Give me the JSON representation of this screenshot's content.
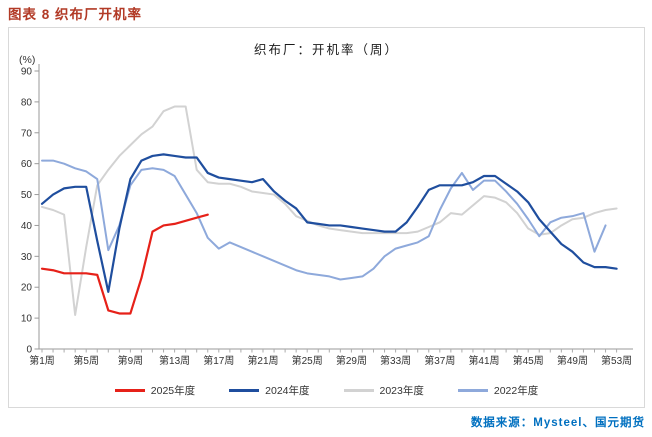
{
  "page": {
    "title": "图表 8 织布厂开机率",
    "source": "数据来源：Mysteel、国元期货"
  },
  "chart_data": {
    "type": "line",
    "title": "织布厂：开机率（周）",
    "y_unit_label": "(%)",
    "ylabel": "开机率(%)",
    "xlabel": "周",
    "ylim": [
      0,
      90
    ],
    "y_ticks": [
      0,
      10,
      20,
      30,
      40,
      50,
      60,
      70,
      80,
      90
    ],
    "x_range_weeks": [
      1,
      53
    ],
    "x_tick_weeks": [
      1,
      5,
      9,
      13,
      17,
      21,
      25,
      29,
      33,
      37,
      41,
      45,
      49,
      53
    ],
    "x_tick_labels": [
      "第1周",
      "第5周",
      "第9周",
      "第13周",
      "第17周",
      "第21周",
      "第25周",
      "第29周",
      "第33周",
      "第37周",
      "第41周",
      "第45周",
      "第49周",
      "第53周"
    ],
    "grid": false,
    "legend_position": "bottom",
    "axis_color": "#9a9a9a",
    "series": [
      {
        "name": "2025年度",
        "color": "#e62119",
        "start_week": 1,
        "values": [
          26,
          25.5,
          24.5,
          24.5,
          24.5,
          24,
          12.5,
          11.5,
          11.5,
          23,
          38,
          40,
          40.5,
          41.5,
          42.5,
          43.5
        ]
      },
      {
        "name": "2024年度",
        "color": "#1f4e9e",
        "start_week": 1,
        "values": [
          47,
          50,
          52,
          52.5,
          52.5,
          35,
          18.5,
          39,
          55,
          61,
          62.5,
          63,
          62.5,
          62,
          62,
          57,
          55.5,
          55,
          54.5,
          54,
          55,
          51,
          48,
          45.5,
          41,
          40.5,
          40,
          40,
          39.5,
          39,
          38.5,
          38,
          38,
          41,
          46,
          51.5,
          53,
          53,
          53,
          54,
          56,
          56,
          53.5,
          51,
          47.5,
          42,
          38,
          34,
          31.5,
          28,
          26.5,
          26.5,
          26
        ]
      },
      {
        "name": "2023年度",
        "color": "#d2d2d2",
        "start_week": 1,
        "values": [
          46,
          45,
          43.5,
          11,
          33,
          53,
          58,
          62.5,
          66,
          69.5,
          72,
          77,
          78.5,
          78.5,
          58,
          54,
          53.5,
          53.5,
          52.5,
          51,
          50.5,
          50,
          47,
          43,
          41.5,
          40,
          39,
          38.5,
          38,
          37.5,
          37.5,
          37.5,
          37.5,
          37.5,
          38,
          39.5,
          41,
          44,
          43.5,
          46.5,
          49.5,
          49,
          47.5,
          44,
          39,
          37,
          37.5,
          40,
          42,
          42.5,
          44,
          45,
          45.5
        ]
      },
      {
        "name": "2022年度",
        "color": "#8ea9db",
        "start_week": 1,
        "values": [
          61,
          61,
          60,
          58.5,
          57.5,
          55,
          32,
          40,
          53,
          58,
          58.5,
          58,
          56,
          50,
          44,
          36,
          32.5,
          34.5,
          33,
          31.5,
          30,
          28.5,
          27,
          25.5,
          24.5,
          24,
          23.5,
          22.5,
          23,
          23.5,
          26,
          30,
          32.5,
          33.5,
          34.5,
          36.5,
          45,
          52,
          57,
          51.5,
          54.5,
          54.5,
          51,
          47,
          42,
          36.5,
          41,
          42.5,
          43,
          44,
          31.5,
          40
        ]
      }
    ]
  }
}
